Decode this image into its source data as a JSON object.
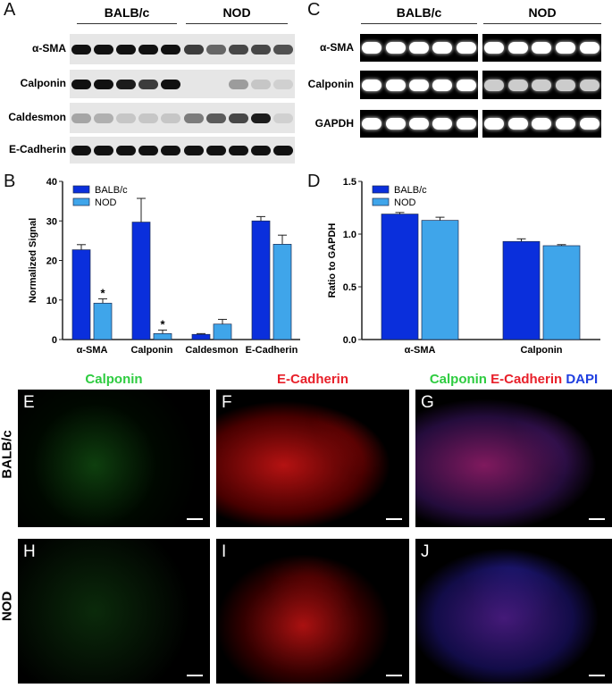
{
  "panel_letters": {
    "a": "A",
    "b": "B",
    "c": "C",
    "d": "D",
    "e": "E",
    "f": "F",
    "g": "G",
    "h": "H",
    "i": "I",
    "j": "J"
  },
  "groups": [
    "BALB/c",
    "NOD"
  ],
  "western": {
    "rows": [
      "α-SMA",
      "Calponin",
      "Caldesmon",
      "E-Cadherin"
    ]
  },
  "pcr": {
    "rows": [
      "α-SMA",
      "Calponin",
      "GAPDH"
    ]
  },
  "micrographs": {
    "titles": {
      "calponin": "Calponin",
      "ecad": "E-Cadherin",
      "merge_calponin": "Calponin",
      "merge_ecad": "E-Cadherin",
      "merge_dapi": "DAPI"
    },
    "title_colors": {
      "calponin": "#2ecc40",
      "ecad": "#e8202a",
      "dapi": "#1f3fe0"
    },
    "row_labels": [
      "BALB/c",
      "NOD"
    ]
  },
  "colors": {
    "balbc": "#0a2fdc",
    "nod": "#3fa5ea"
  },
  "chart_data": [
    {
      "type": "bar",
      "panel": "B",
      "categories": [
        "α-SMA",
        "Calponin",
        "Caldesmon",
        "E-Cadherin"
      ],
      "series": [
        {
          "name": "BALB/c",
          "values": [
            22.7,
            29.7,
            1.3,
            30.0
          ],
          "errors": [
            1.3,
            6.0,
            0.2,
            1.1
          ]
        },
        {
          "name": "NOD",
          "values": [
            9.2,
            1.5,
            3.9,
            24.1
          ],
          "errors": [
            1.1,
            0.9,
            1.2,
            2.3
          ]
        }
      ],
      "annotations": [
        {
          "category": "α-SMA",
          "series": "NOD",
          "text": "*"
        },
        {
          "category": "Calponin",
          "series": "NOD",
          "text": "*"
        }
      ],
      "ylabel": "Normalized Signal",
      "ylim": [
        0,
        40
      ],
      "yticks": [
        0,
        10,
        20,
        30,
        40
      ],
      "legend": "top-left"
    },
    {
      "type": "bar",
      "panel": "D",
      "categories": [
        "α-SMA",
        "Calponin"
      ],
      "series": [
        {
          "name": "BALB/c",
          "values": [
            1.19,
            0.93
          ],
          "errors": [
            0.015,
            0.025
          ]
        },
        {
          "name": "NOD",
          "values": [
            1.13,
            0.89
          ],
          "errors": [
            0.03,
            0.01
          ]
        }
      ],
      "ylabel": "Ratio to GAPDH",
      "ylim": [
        0,
        1.5
      ],
      "yticks": [
        "0.0",
        "0.5",
        "1.0",
        "1.5"
      ],
      "legend": "top-left"
    }
  ]
}
